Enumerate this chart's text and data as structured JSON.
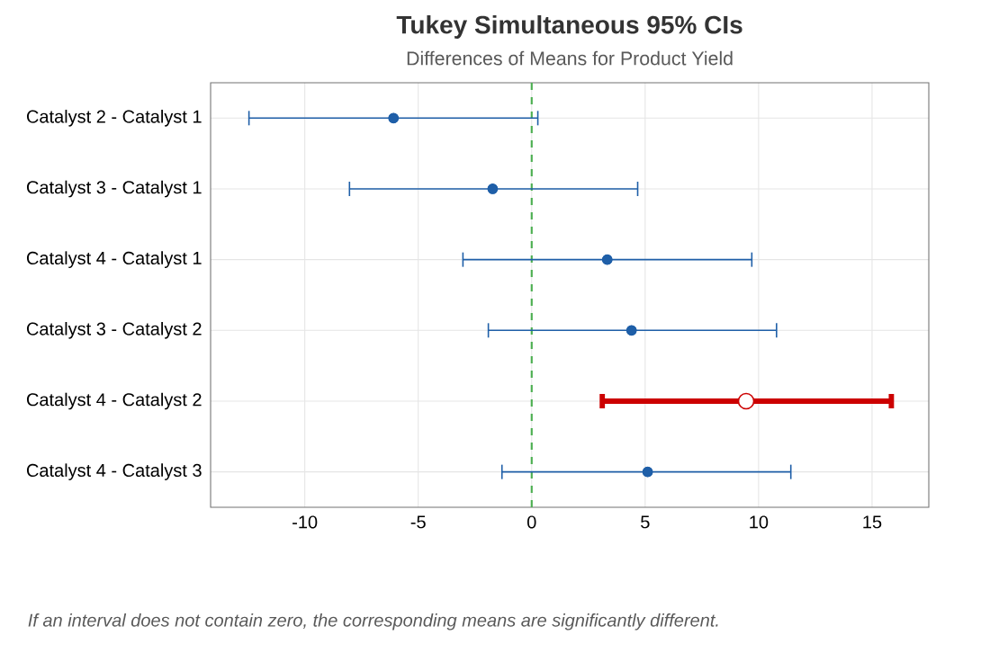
{
  "chart_data": {
    "type": "scatter",
    "orientation": "horizontal",
    "title": "Tukey Simultaneous 95% CIs",
    "subtitle": "Differences of Means for Product Yield",
    "categories": [
      "Catalyst 2 - Catalyst 1",
      "Catalyst 3 - Catalyst 1",
      "Catalyst 4 - Catalyst 1",
      "Catalyst 3 - Catalyst 2",
      "Catalyst 4 - Catalyst 2",
      "Catalyst 4 - Catalyst 3"
    ],
    "series": [
      {
        "color": "#1f5fa8",
        "values": [
          -6.09,
          -1.72,
          3.33,
          4.4,
          null,
          5.11
        ],
        "errors": [
          [
            -12.46,
            0.27
          ],
          [
            -8.03,
            4.67
          ],
          [
            -3.03,
            9.7
          ],
          [
            -1.91,
            10.79
          ],
          null,
          [
            -1.31,
            11.42
          ]
        ]
      },
      {
        "color": "#cc0000",
        "values": [
          null,
          null,
          null,
          null,
          9.45,
          null
        ],
        "errors": [
          null,
          null,
          null,
          null,
          [
            3.11,
            15.85
          ],
          null
        ]
      }
    ],
    "xlim": [
      -14.15,
      17.5
    ],
    "xticks": [
      -10,
      -5,
      0,
      5,
      10,
      15
    ],
    "grid": true,
    "marker": "circle",
    "ref_lines": [
      {
        "axis": "x",
        "value": 0,
        "color": "#4caf50",
        "line_style": "dashed"
      }
    ],
    "annotations": [
      "If an interval does not contain zero, the corresponding means are significantly different."
    ]
  }
}
